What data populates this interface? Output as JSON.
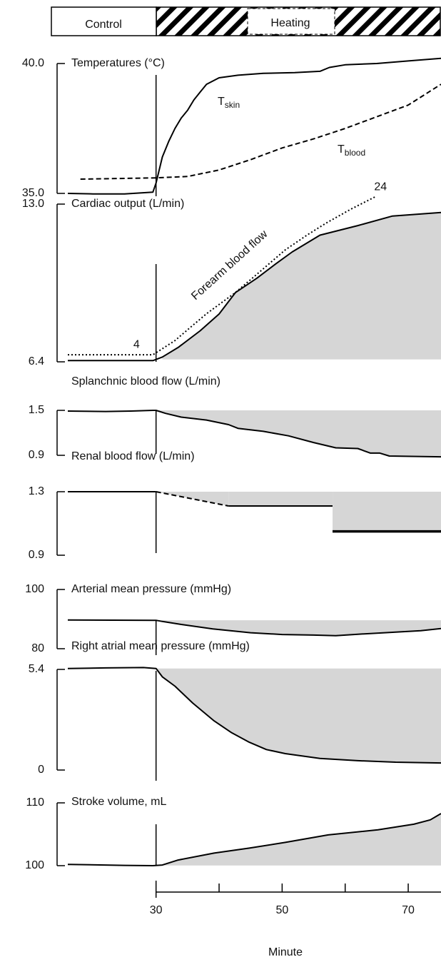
{
  "header": {
    "control": "Control",
    "heating": "Heating"
  },
  "x_axis": {
    "label": "Minute",
    "xlim": [
      16,
      75.2
    ],
    "xticks": [
      30,
      50,
      70
    ],
    "minor_xticks": [
      40,
      60
    ]
  },
  "chart_data": [
    {
      "type": "line",
      "title": "Temperatures (°C)",
      "ylim": [
        35,
        40
      ],
      "yticks": [
        {
          "value": 40,
          "label": "40.0"
        },
        {
          "value": 35,
          "label": "35.0"
        }
      ],
      "shade": false,
      "series": [
        {
          "name": "T",
          "name_sub": "skin",
          "color": "#000000",
          "style": "solid",
          "x": [
            16,
            20,
            25,
            29.5,
            30,
            31,
            32,
            33,
            34,
            35,
            36,
            37,
            38,
            40,
            43,
            47,
            52,
            56,
            57.5,
            60,
            65,
            70,
            75.2
          ],
          "values": [
            35.0,
            34.98,
            34.98,
            35.05,
            35.4,
            36.4,
            37.0,
            37.5,
            37.9,
            38.2,
            38.6,
            38.9,
            39.2,
            39.45,
            39.55,
            39.62,
            39.65,
            39.7,
            39.85,
            39.95,
            40.0,
            40.1,
            40.2
          ]
        },
        {
          "name": "T",
          "name_sub": "blood",
          "color": "#000000",
          "style": "dashed",
          "x": [
            18,
            30,
            35,
            40,
            45,
            50,
            55,
            60,
            65,
            70,
            75.2
          ],
          "values": [
            35.55,
            35.6,
            35.65,
            35.9,
            36.3,
            36.75,
            37.1,
            37.5,
            37.95,
            38.4,
            39.2
          ]
        }
      ]
    },
    {
      "type": "line",
      "title": "Cardiac output (L/min)",
      "ylim": [
        6.4,
        13
      ],
      "yticks": [
        {
          "value": 13,
          "label": "13.0"
        },
        6.4
      ],
      "y2lim": [
        3.1,
        23.1
      ],
      "shade": true,
      "series": [
        {
          "color": "#000000",
          "style": "solid",
          "x": [
            16,
            25,
            29.5,
            31,
            33.5,
            37,
            40,
            42.6,
            46,
            49,
            51.6,
            56,
            62,
            67.5,
            75.2
          ],
          "values": [
            6.45,
            6.45,
            6.45,
            6.6,
            7.0,
            7.7,
            8.4,
            9.3,
            9.9,
            10.5,
            11.0,
            11.7,
            12.1,
            12.5,
            12.65
          ]
        },
        {
          "name": "Forearm blood flow",
          "axis": "y2",
          "color": "#000000",
          "style": "dotted",
          "x": [
            16,
            26,
            29.5,
            30.5,
            33,
            35.2,
            38,
            42.6,
            46,
            50.5,
            54,
            57,
            61,
            64.7
          ],
          "values": [
            4,
            4,
            4,
            4.5,
            5.8,
            7.3,
            9.2,
            11.9,
            14.2,
            17.3,
            19.2,
            20.7,
            22.5,
            24
          ],
          "value_labels": [
            null,
            "4",
            null,
            null,
            null,
            null,
            null,
            null,
            null,
            null,
            null,
            null,
            null,
            "24"
          ]
        }
      ]
    },
    {
      "type": "line",
      "title": "Splanchnic blood flow (L/min)",
      "ylim": [
        0.9,
        1.5
      ],
      "yticks": [
        1.5,
        0.9
      ],
      "shade": true,
      "series": [
        {
          "color": "#000000",
          "style": "solid",
          "x": [
            16,
            22,
            26,
            29.5,
            30,
            31.5,
            34,
            38,
            41.5,
            43,
            47,
            51,
            55,
            58.5,
            62,
            64,
            65.5,
            67,
            75.2
          ],
          "values": [
            1.49,
            1.485,
            1.49,
            1.5,
            1.5,
            1.46,
            1.41,
            1.37,
            1.31,
            1.26,
            1.22,
            1.16,
            1.07,
            1.0,
            0.99,
            0.93,
            0.93,
            0.89,
            0.88
          ]
        }
      ]
    },
    {
      "type": "line",
      "title": "Renal blood flow (L/min)",
      "ylim": [
        0.9,
        1.3
      ],
      "yticks": [
        1.3,
        0.9
      ],
      "shade": true,
      "series": [
        {
          "color": "#000000",
          "style": "solid",
          "x": [
            16,
            30
          ],
          "values": [
            1.3,
            1.3
          ]
        },
        {
          "color": "#000000",
          "style": "dashed",
          "x": [
            30,
            41.5
          ],
          "values": [
            1.3,
            1.21
          ]
        },
        {
          "color": "#000000",
          "style": "solid",
          "x": [
            41.5,
            58
          ],
          "values": [
            1.21,
            1.21
          ]
        },
        {
          "color": "#000000",
          "style": "bold",
          "x": [
            58,
            75.2
          ],
          "values": [
            1.05,
            1.05
          ]
        }
      ]
    },
    {
      "type": "line",
      "title": "Arterial mean pressure (mmHg)",
      "ylim": [
        80,
        100
      ],
      "yticks": [
        100,
        80
      ],
      "shade": true,
      "series": [
        {
          "color": "#000000",
          "style": "solid",
          "x": [
            16,
            30,
            31,
            34,
            39,
            45,
            50,
            55,
            58.5,
            62,
            67,
            72,
            75.2
          ],
          "values": [
            89.7,
            89.6,
            89.2,
            88.2,
            86.7,
            85.4,
            84.8,
            84.6,
            84.4,
            84.9,
            85.5,
            86.1,
            86.8
          ]
        }
      ]
    },
    {
      "type": "line",
      "title": "Right atrial mean pressure (mmHg)",
      "ylim": [
        0,
        5.4
      ],
      "yticks": [
        5.4,
        0
      ],
      "shade": true,
      "series": [
        {
          "color": "#000000",
          "style": "solid",
          "x": [
            16,
            22,
            28,
            30,
            31,
            33,
            35.8,
            39.2,
            42,
            44.8,
            47.5,
            50.5,
            56,
            62,
            68,
            75.2
          ],
          "values": [
            5.45,
            5.48,
            5.5,
            5.45,
            5.0,
            4.5,
            3.6,
            2.64,
            2.0,
            1.49,
            1.1,
            0.88,
            0.62,
            0.5,
            0.42,
            0.38
          ]
        }
      ]
    },
    {
      "type": "line",
      "title": "Stroke volume, mL",
      "ylim": [
        100,
        110
      ],
      "yticks": [
        110,
        100
      ],
      "shade": true,
      "series": [
        {
          "color": "#000000",
          "style": "solid",
          "x": [
            16,
            25,
            29.5,
            31,
            33.5,
            39.2,
            44.8,
            50.5,
            57.3,
            65.2,
            70.9,
            73.5,
            75.2
          ],
          "values": [
            100.2,
            100.05,
            100.0,
            100.1,
            100.9,
            102.0,
            102.8,
            103.7,
            104.9,
            105.7,
            106.6,
            107.3,
            108.3
          ]
        }
      ]
    }
  ]
}
